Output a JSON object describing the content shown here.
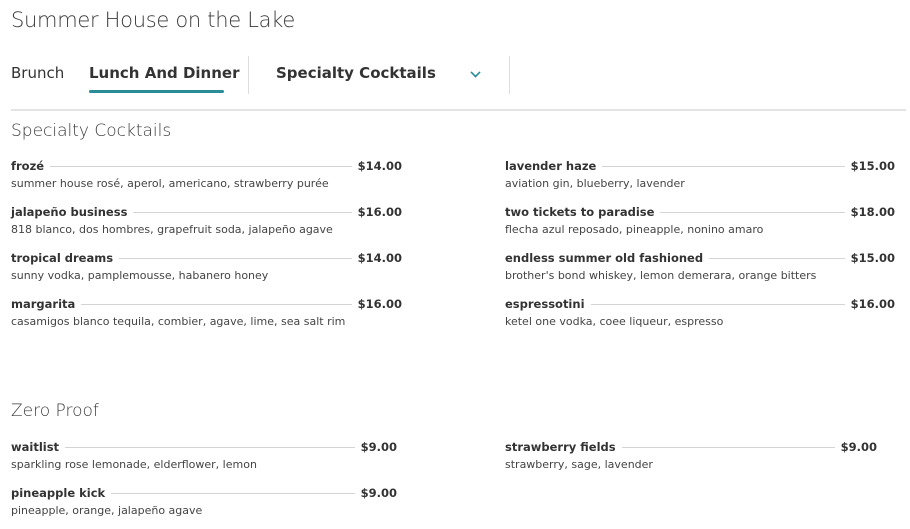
{
  "title": "Summer House on the Lake",
  "nav": {
    "tabs": [
      {
        "label": "Brunch"
      },
      {
        "label": "Lunch And Dinner"
      }
    ],
    "dropdown": {
      "selected": "Specialty Cocktails",
      "icon": "chevron-down-icon"
    },
    "accent": "#2a8c97"
  },
  "sections": [
    {
      "title": "Specialty Cocktails",
      "items": [
        {
          "name": "frozé",
          "price": "$14.00",
          "desc": "summer house rosé, aperol, americano, strawberry purée"
        },
        {
          "name": "jalapeño business",
          "price": "$16.00",
          "desc": "818 blanco, dos hombres, grapefruit soda, jalapeño agave"
        },
        {
          "name": "tropical dreams",
          "price": "$14.00",
          "desc": "sunny vodka, pamplemousse, habanero honey"
        },
        {
          "name": "margarita",
          "price": "$16.00",
          "desc": "casamigos blanco tequila, combier, agave, lime, sea salt rim"
        },
        {
          "name": "lavender haze",
          "price": "$15.00",
          "desc": "aviation gin, blueberry, lavender"
        },
        {
          "name": "two tickets to paradise",
          "price": "$18.00",
          "desc": "flecha azul reposado, pineapple, nonino amaro"
        },
        {
          "name": "endless summer old fashioned",
          "price": "$15.00",
          "desc": "brother's bond whiskey, lemon demerara, orange bitters"
        },
        {
          "name": "espressotini",
          "price": "$16.00",
          "desc": "ketel one vodka, coee liqueur, espresso"
        }
      ]
    },
    {
      "title": "Zero Proof",
      "items": [
        {
          "name": "waitlist",
          "price": "$9.00",
          "desc": "sparkling rose lemonade, elderflower, lemon"
        },
        {
          "name": "pineapple kick",
          "price": "$9.00",
          "desc": "pineapple, orange, jalapeño agave"
        },
        {
          "name": "strawberry fields",
          "price": "$9.00",
          "desc": "strawberry, sage, lavender"
        }
      ]
    }
  ]
}
